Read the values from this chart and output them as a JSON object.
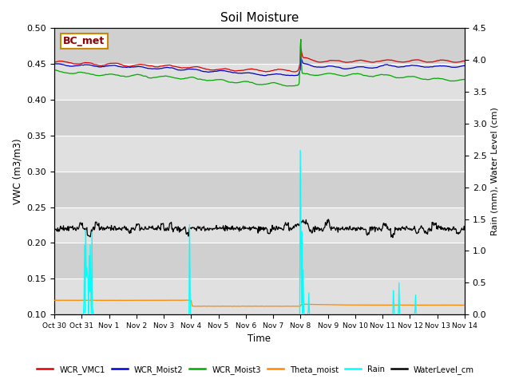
{
  "title": "Soil Moisture",
  "xlabel": "Time",
  "ylabel_left": "VWC (m3/m3)",
  "ylabel_right": "Rain (mm), Water Level (cm)",
  "annotation_label": "BC_met",
  "ylim_left": [
    0.1,
    0.5
  ],
  "ylim_right": [
    0.0,
    4.5
  ],
  "yticks_left": [
    0.1,
    0.15,
    0.2,
    0.25,
    0.3,
    0.35,
    0.4,
    0.45,
    0.5
  ],
  "yticks_right": [
    0.0,
    0.5,
    1.0,
    1.5,
    2.0,
    2.5,
    3.0,
    3.5,
    4.0,
    4.5
  ],
  "xtick_labels": [
    "Oct 30",
    "Oct 31",
    "Nov 1",
    "Nov 2",
    "Nov 3",
    "Nov 4",
    "Nov 5",
    "Nov 6",
    "Nov 7",
    "Nov 8",
    "Nov 9",
    "Nov 10",
    "Nov 11",
    "Nov 12",
    "Nov 13",
    "Nov 14"
  ],
  "colors": {
    "WCR_VMC1": "#dd0000",
    "WCR_Moist2": "#0000cc",
    "WCR_Moist3": "#00aa00",
    "Theta_moist": "#ff8800",
    "Rain": "#00ffff",
    "WaterLevel_cm": "#000000"
  },
  "legend_labels": [
    "WCR_VMC1",
    "WCR_Moist2",
    "WCR_Moist3",
    "Theta_moist",
    "Rain",
    "WaterLevel_cm"
  ],
  "background_color": "#e8e8e8",
  "background_color2": "#d8d8d8",
  "title_fontsize": 11,
  "annotation_fontsize": 9,
  "linewidth_soil": 0.9,
  "linewidth_other": 0.9
}
